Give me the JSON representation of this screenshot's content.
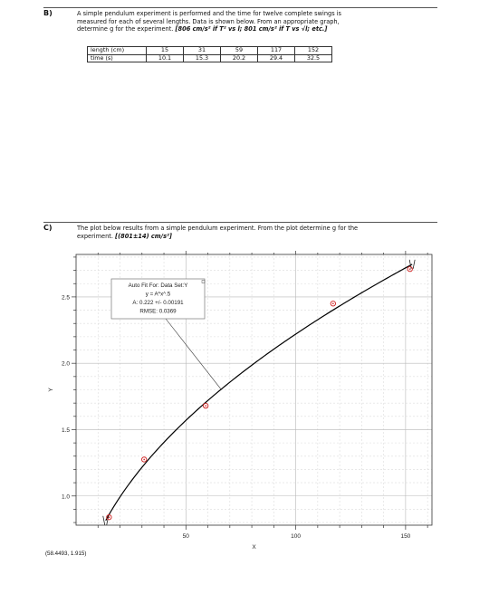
{
  "section_b": {
    "label": "B)",
    "line1": "A simple pendulum experiment is performed and the time for twelve complete swings is",
    "line2": "measured for each of several lengths.  Data is shown below.  From an appropriate graph,",
    "line3_prefix": "determine g for the experiment.  ",
    "line3_answer": "[806 cm/s² if T² vs l; 801 cm/s² if T vs √l; etc.]",
    "table": {
      "headers": [
        "length (cm)",
        "time (s)"
      ],
      "lengths": [
        "15",
        "31",
        "59",
        "117",
        "152"
      ],
      "times": [
        "10.1",
        "15.3",
        "20.2",
        "29.4",
        "32.5"
      ]
    }
  },
  "section_c": {
    "label": "C)",
    "line1": "The plot below results from a simple pendulum experiment.  From the plot determine g for the",
    "line2_prefix": "experiment.  ",
    "line2_answer": "[(801±14) cm/s²]"
  },
  "fit_box": {
    "title": "Auto Fit For:  Data Set:Y",
    "equation": "y = A*x^.5",
    "param": "A: 0.222 +/- 0.00191",
    "rmse": "RMSE: 0.0369"
  },
  "cursor_readout": "(58.4493, 1.915)",
  "chart_data": {
    "type": "scatter",
    "xlabel": "X",
    "ylabel": "Y",
    "xlim": [
      0,
      162
    ],
    "ylim": [
      0.78,
      2.82
    ],
    "x_ticks": [
      50,
      100,
      150
    ],
    "y_ticks": [
      1.0,
      1.5,
      2.0,
      2.5
    ],
    "x_tick_labels": [
      "50",
      "100",
      "150"
    ],
    "y_tick_labels": [
      "1.0",
      "1.5",
      "2.0",
      "2.5"
    ],
    "grid": true,
    "points": [
      {
        "x": 15,
        "y": 0.84
      },
      {
        "x": 31,
        "y": 1.275
      },
      {
        "x": 59,
        "y": 1.68
      },
      {
        "x": 117,
        "y": 2.45
      },
      {
        "x": 152,
        "y": 2.71
      }
    ],
    "fit_curve": {
      "model": "A*x^0.5",
      "A": 0.222,
      "x_start": 13.5,
      "x_end": 153
    },
    "marker_color": "#d02020",
    "curve_color": "#000000"
  }
}
